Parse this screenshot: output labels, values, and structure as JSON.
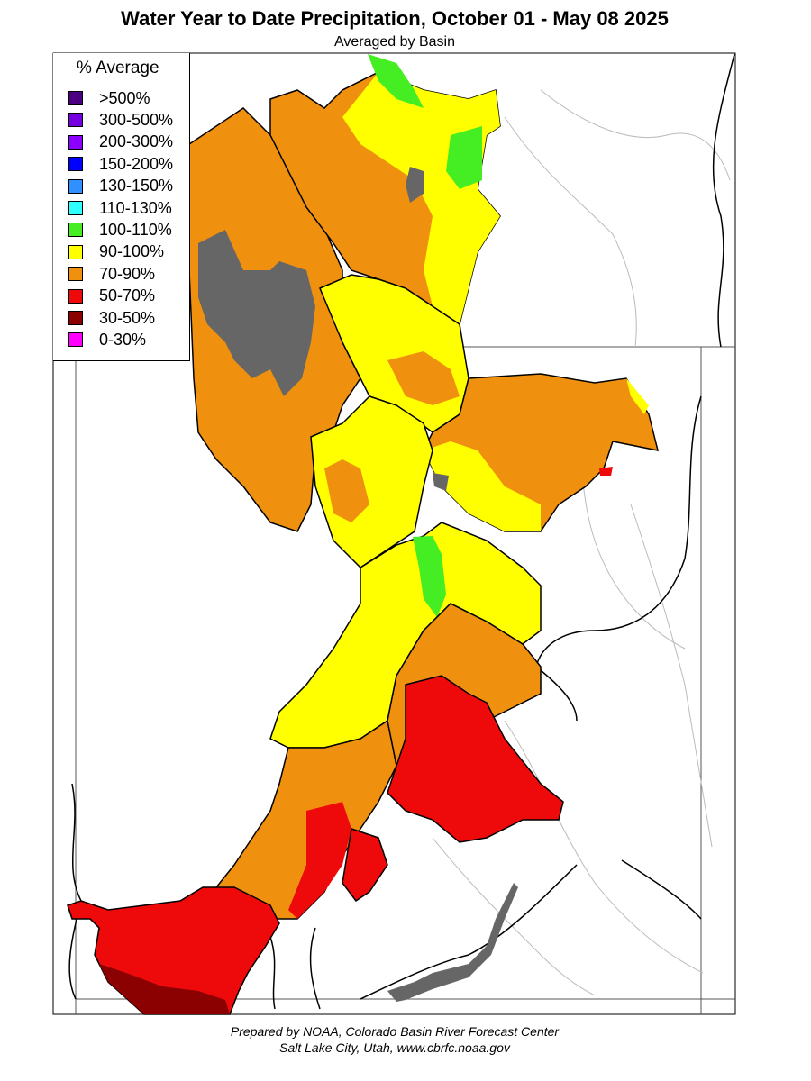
{
  "title": "Water Year to Date Precipitation, October 01  - May 08 2025",
  "subtitle": "Averaged by Basin",
  "legend": {
    "title": "% Average",
    "items": [
      {
        "label": ">500%",
        "color": "#4b0082"
      },
      {
        "label": "300-500%",
        "color": "#7400e0"
      },
      {
        "label": "200-300%",
        "color": "#8c00ff"
      },
      {
        "label": "150-200%",
        "color": "#0000ff"
      },
      {
        "label": "130-150%",
        "color": "#3090ff"
      },
      {
        "label": "110-130%",
        "color": "#30ffff"
      },
      {
        "label": "100-110%",
        "color": "#44ee22"
      },
      {
        "label": "90-100%",
        "color": "#ffff00"
      },
      {
        "label": "70-90%",
        "color": "#f0900f"
      },
      {
        "label": "50-70%",
        "color": "#ee0a0a"
      },
      {
        "label": "30-50%",
        "color": "#8b0000"
      },
      {
        "label": "0-30%",
        "color": "#ff00ff"
      }
    ]
  },
  "colors": {
    "no_data_lake": "#666666",
    "state_line": "#555555",
    "basin_line": "#000000",
    "river_line": "#aaaaaa"
  },
  "footer": {
    "line1": "Prepared by NOAA, Colorado Basin River Forecast Center",
    "line2": "Salt Lake City, Utah, www.cbrfc.noaa.gov"
  }
}
